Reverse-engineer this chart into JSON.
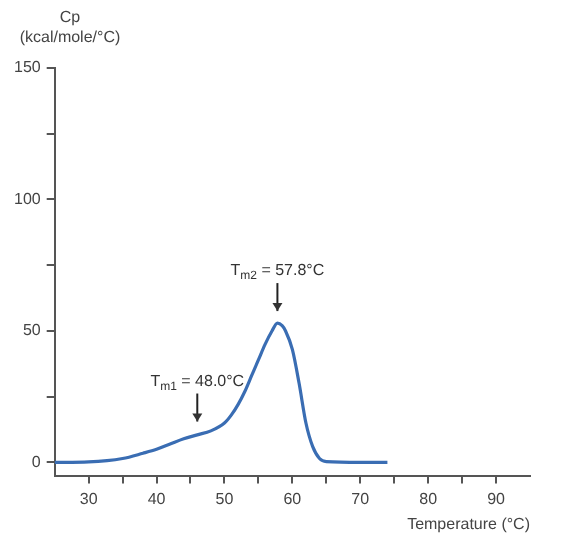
{
  "chart_data": {
    "type": "line",
    "xlabel": "Temperature (°C)",
    "ylabel": "Cp (kcal/mole/°C)",
    "x": [
      25,
      30,
      35,
      38,
      40,
      42,
      44,
      46,
      48,
      50,
      51,
      52,
      53,
      54,
      55,
      56,
      57,
      57.8,
      58.5,
      59,
      60,
      61,
      62,
      63,
      64,
      65,
      70,
      74
    ],
    "series": [
      {
        "color": "#3a6db3",
        "values": [
          0,
          0.2,
          1.5,
          3.5,
          5,
          7,
          9,
          10.5,
          12,
          15,
          18,
          22,
          27,
          33,
          39,
          45,
          50,
          53,
          52,
          50,
          43,
          30,
          15,
          6,
          1.5,
          0.3,
          0,
          0
        ]
      }
    ],
    "xlim": [
      25,
      95
    ],
    "xticks": [
      30,
      {
        "value": 35,
        "label": null
      },
      40,
      {
        "value": 45,
        "label": null
      },
      50,
      {
        "value": 55,
        "label": null
      },
      60,
      {
        "value": 65,
        "label": null
      },
      70,
      {
        "value": 75,
        "label": null
      },
      80,
      {
        "value": 85,
        "label": null
      },
      90
    ],
    "ylim": [
      -5,
      150
    ],
    "yticks": [
      0,
      {
        "value": 25,
        "label": null
      },
      50,
      {
        "value": 75,
        "label": null
      },
      100,
      {
        "value": 125,
        "label": null
      },
      150
    ],
    "annotations": [
      {
        "text": "T$_{m1}$ = 48.0°C",
        "x": 46,
        "y": 11
      },
      {
        "text": "T$_{m2}$ = 57.8°C",
        "x": 57.8,
        "y": 53
      }
    ],
    "grid": false,
    "legend": false,
    "marker": "none",
    "line_style": "solid"
  }
}
